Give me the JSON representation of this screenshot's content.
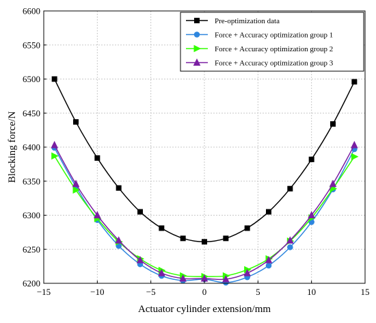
{
  "chart_data": {
    "type": "line",
    "xlabel": "Actuator cylinder extension/mm",
    "ylabel": "Blocking force/N",
    "xlim": [
      -15,
      15
    ],
    "ylim": [
      6200,
      6600
    ],
    "xticks": [
      -15,
      -10,
      -5,
      0,
      5,
      10,
      15
    ],
    "yticks": [
      6200,
      6250,
      6300,
      6350,
      6400,
      6450,
      6500,
      6550,
      6600
    ],
    "grid": true,
    "legend_position": "top-right",
    "x": [
      -14,
      -12,
      -10,
      -8,
      -6,
      -4,
      -2,
      0,
      2,
      4,
      6,
      8,
      10,
      12,
      14
    ],
    "series": [
      {
        "name": "Pre-optimization data",
        "color": "#000000",
        "marker": "square",
        "values": [
          6500,
          6437,
          6384,
          6340,
          6305,
          6281,
          6266,
          6261,
          6266,
          6281,
          6305,
          6339,
          6382,
          6434,
          6496
        ]
      },
      {
        "name": "Force + Accuracy optimization group 1",
        "color": "#2e86de",
        "marker": "circle",
        "values": [
          6399,
          6342,
          6293,
          6255,
          6228,
          6211,
          6204,
          6206,
          6201,
          6209,
          6226,
          6253,
          6290,
          6338,
          6397
        ]
      },
      {
        "name": "Force + Accuracy optimization group 2",
        "color": "#33ff00",
        "marker": "triangle-right",
        "values": [
          6387,
          6337,
          6295,
          6261,
          6236,
          6219,
          6211,
          6210,
          6211,
          6220,
          6236,
          6262,
          6296,
          6339,
          6386
        ]
      },
      {
        "name": "Force + Accuracy optimization group 3",
        "color": "#7a1fa2",
        "marker": "triangle-up",
        "values": [
          6403,
          6346,
          6300,
          6263,
          6234,
          6215,
          6207,
          6207,
          6206,
          6215,
          6234,
          6263,
          6300,
          6346,
          6403
        ]
      }
    ]
  }
}
